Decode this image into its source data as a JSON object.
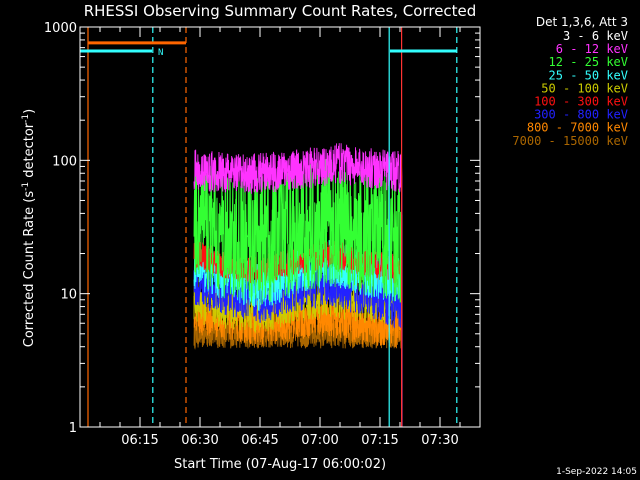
{
  "colors": {
    "background": "#000000",
    "axes": "#ffffff"
  },
  "chart_data": {
    "type": "line",
    "title": "RHESSI Observing Summary Count Rates, Corrected",
    "xlabel": "Start Time (07-Aug-17 06:00:02)",
    "ylabel_main": "Corrected Count Rate (s",
    "ylabel_sup1": "-1",
    "ylabel_mid": " detector",
    "ylabel_sup2": "-1",
    "ylabel_end": ")",
    "y_scale": "log",
    "ylim": [
      1,
      1000
    ],
    "xlim_minutes": [
      0,
      100
    ],
    "x_ticks": [
      {
        "minute": 15,
        "label": "06:15"
      },
      {
        "minute": 30,
        "label": "06:30"
      },
      {
        "minute": 45,
        "label": "06:45"
      },
      {
        "minute": 60,
        "label": "07:00"
      },
      {
        "minute": 75,
        "label": "07:15"
      },
      {
        "minute": 90,
        "label": "07:30"
      }
    ],
    "y_ticks": [
      {
        "value": 1,
        "label": "1"
      },
      {
        "value": 10,
        "label": "10"
      },
      {
        "value": 100,
        "label": "100"
      },
      {
        "value": 1000,
        "label": "1000"
      }
    ],
    "data_window_minutes": [
      28.5,
      80.5
    ],
    "legend_header": "Det 1,3,6, Att 3",
    "footer_date": "1-Sep-2022 14:05",
    "series": [
      {
        "name": "3 - 6 keV",
        "color": "#ffffff",
        "draw_color": "#000000",
        "base": 640,
        "amp": 0.03,
        "noise": 0.015,
        "trend": [
          [
            28.5,
            600
          ],
          [
            29.5,
            640
          ],
          [
            80,
            640
          ]
        ],
        "end_drop": 120
      },
      {
        "name": "6 - 12 keV",
        "color": "#ff33ff",
        "base": 85,
        "noise": 0.07,
        "trend": [
          [
            28.5,
            85
          ],
          [
            40,
            78
          ],
          [
            55,
            85
          ],
          [
            65,
            95
          ],
          [
            72,
            88
          ],
          [
            80,
            82
          ]
        ]
      },
      {
        "name": "12 - 25 keV",
        "color": "#33ff33",
        "base": 30,
        "noise": 0.22,
        "trend": [
          [
            28.5,
            38
          ],
          [
            35,
            28
          ],
          [
            45,
            25
          ],
          [
            55,
            30
          ],
          [
            62,
            35
          ],
          [
            70,
            30
          ],
          [
            80,
            26
          ]
        ]
      },
      {
        "name": "25 - 50 keV",
        "color": "#33ffff",
        "base": 14,
        "noise": 0.08,
        "trend": [
          [
            28.5,
            16
          ],
          [
            38,
            13
          ],
          [
            45,
            11
          ],
          [
            55,
            15
          ],
          [
            62,
            17
          ],
          [
            72,
            14
          ],
          [
            80,
            13
          ]
        ]
      },
      {
        "name": "50 - 100 keV",
        "color": "#cccc00",
        "base": 9,
        "noise": 0.08,
        "trend": [
          [
            28.5,
            9
          ],
          [
            38,
            8
          ],
          [
            45,
            7.5
          ],
          [
            55,
            9
          ],
          [
            62,
            10
          ],
          [
            72,
            9
          ],
          [
            80,
            8.5
          ]
        ]
      },
      {
        "name": "100 - 300 keV",
        "color": "#ff1111",
        "base": 17,
        "noise": 0.05,
        "trend": [
          [
            28.5,
            20
          ],
          [
            38,
            16
          ],
          [
            45,
            15
          ],
          [
            55,
            18
          ],
          [
            62,
            20
          ],
          [
            72,
            17
          ],
          [
            80,
            15
          ]
        ]
      },
      {
        "name": "300 - 800 keV",
        "color": "#2222ff",
        "base": 10,
        "noise": 0.08,
        "trend": [
          [
            28.5,
            12
          ],
          [
            38,
            10
          ],
          [
            45,
            9
          ],
          [
            55,
            11
          ],
          [
            62,
            12
          ],
          [
            72,
            10
          ],
          [
            80,
            8
          ]
        ]
      },
      {
        "name": "800 - 7000 keV",
        "color": "#ff8800",
        "base": 6,
        "noise": 0.07,
        "trend": [
          [
            28.5,
            7
          ],
          [
            38,
            6.3
          ],
          [
            45,
            5.8
          ],
          [
            55,
            6.5
          ],
          [
            62,
            6.8
          ],
          [
            72,
            5.8
          ],
          [
            80,
            5.5
          ]
        ]
      },
      {
        "name": "7000 - 15000 keV",
        "color": "#aa6600",
        "base": 5,
        "noise": 0.05,
        "trend": [
          [
            28.5,
            5
          ],
          [
            80,
            5
          ]
        ]
      }
    ],
    "segments": [
      {
        "color": "#ff6600",
        "width": 3,
        "x1": 2.0,
        "x2": 26.5,
        "y": 760
      },
      {
        "color": "#33ffff",
        "width": 3,
        "x1": -1,
        "x2": 18,
        "y": 660
      },
      {
        "color": "#33ffff",
        "width": 3,
        "x1": 77.5,
        "x2": 94.2,
        "y": 660
      }
    ],
    "vlines": [
      {
        "color": "#33ffff",
        "dashed": false,
        "x": -0.5
      },
      {
        "color": "#ff6600",
        "dashed": false,
        "x": 2.0
      },
      {
        "color": "#33ffff",
        "dashed": true,
        "x": 18.2
      },
      {
        "color": "#ff6600",
        "dashed": true,
        "x": 26.5
      },
      {
        "color": "#33ffff",
        "dashed": false,
        "x": 77.3
      },
      {
        "color": "#ff3333",
        "dashed": false,
        "x": 80.4
      },
      {
        "color": "#33ffff",
        "dashed": true,
        "x": 94.2
      }
    ],
    "markers": [
      {
        "text": "S",
        "color": "#ff6600",
        "x": -1.3,
        "y": 780
      },
      {
        "text": "N",
        "color": "#33ffff",
        "x": 19.5,
        "y": 660
      }
    ]
  }
}
